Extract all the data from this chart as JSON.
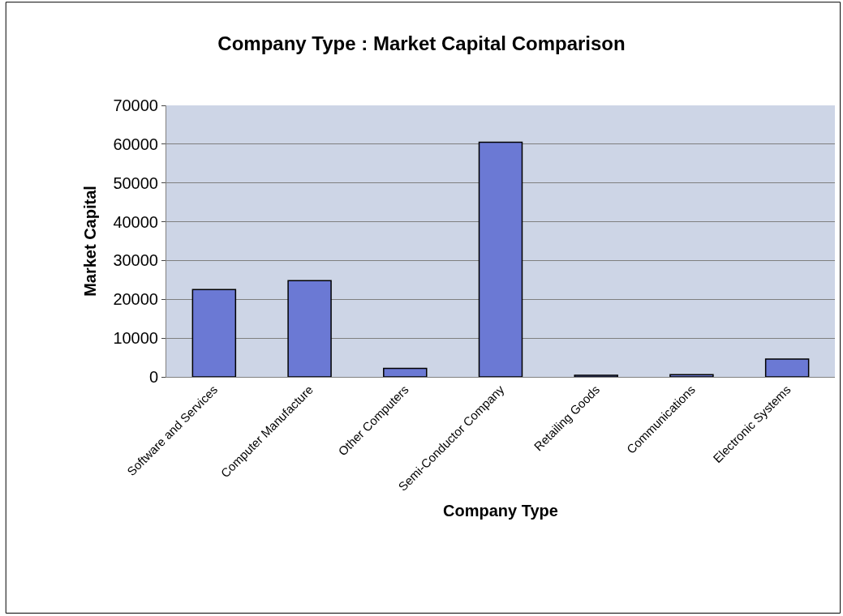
{
  "chart_data": {
    "type": "bar",
    "title": "Company Type : Market Capital Comparison",
    "xlabel": "Company Type",
    "ylabel": "Market Capital",
    "categories": [
      "Software and Services",
      "Computer Manufacture",
      "Other Computers",
      "Semi-Conductor Company",
      "Retailing Goods",
      "Communications",
      "Electronic Systems"
    ],
    "values": [
      22500,
      24800,
      2200,
      60500,
      400,
      600,
      4600
    ],
    "color": "#6b79d4",
    "ylim": [
      0,
      70000
    ],
    "yticks": [
      0,
      10000,
      20000,
      30000,
      40000,
      50000,
      60000,
      70000
    ],
    "grid": "y"
  }
}
